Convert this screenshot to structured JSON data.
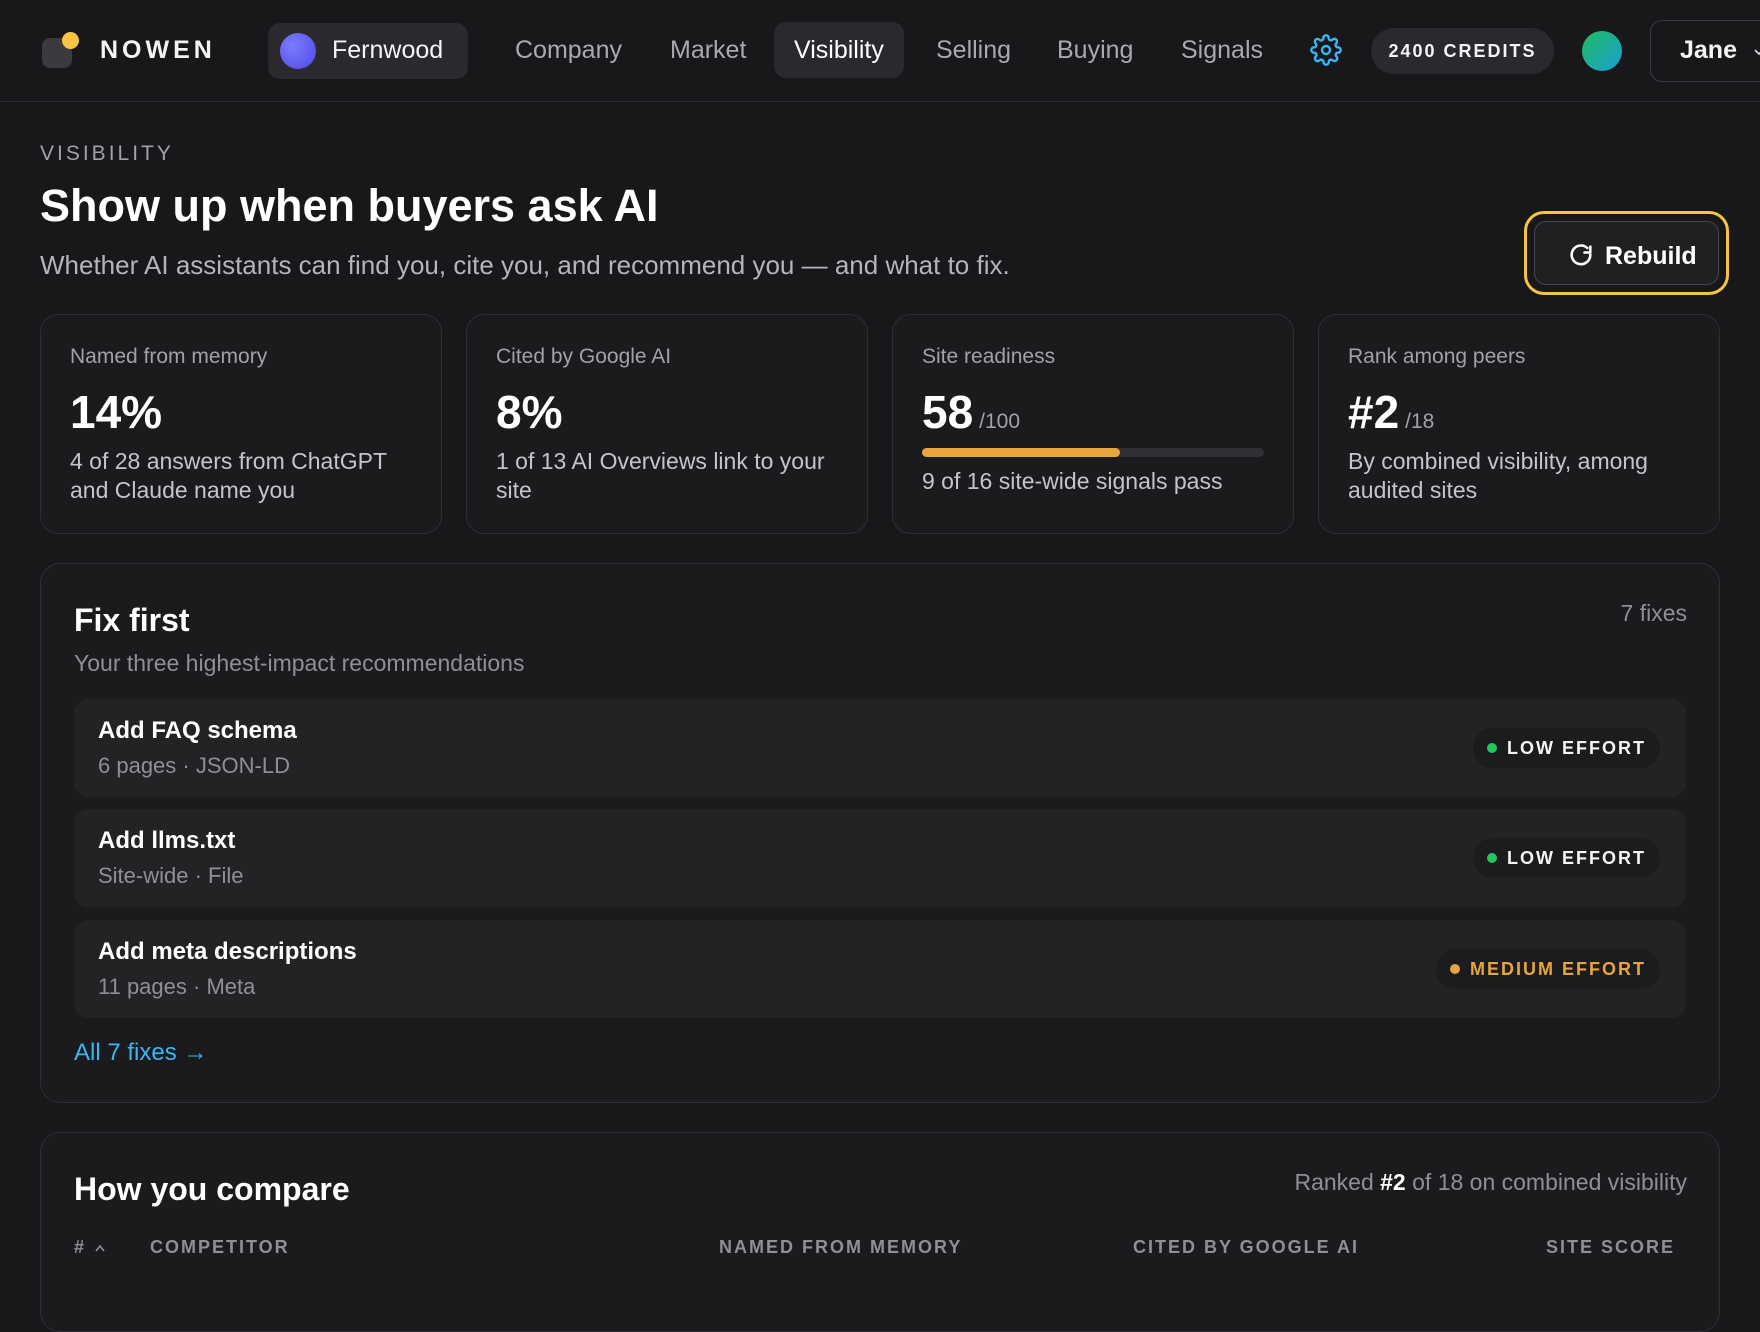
{
  "app": {
    "name": "NOWEN"
  },
  "workspace": {
    "name": "Fernwood"
  },
  "nav": {
    "items": [
      {
        "label": "Company",
        "active": false
      },
      {
        "label": "Market",
        "active": false
      },
      {
        "label": "Visibility",
        "active": true
      },
      {
        "label": "Selling",
        "active": false
      },
      {
        "label": "Buying",
        "active": false
      },
      {
        "label": "Signals",
        "active": false
      }
    ]
  },
  "header_actions": {
    "settings_icon": "gear-icon",
    "credits_label": "2400 CREDITS",
    "user_name": "Jane"
  },
  "page": {
    "eyebrow": "VISIBILITY",
    "title": "Show up when buyers ask AI",
    "subtitle": "Whether AI assistants can find you, cite you, and recommend you — and what to fix.",
    "rebuild_label": "Rebuild"
  },
  "stats": [
    {
      "label": "Named from memory",
      "value": "14%",
      "unit": "",
      "description": "4 of 28 answers from ChatGPT and Claude name you"
    },
    {
      "label": "Cited by Google AI",
      "value": "8%",
      "unit": "",
      "description": "1 of 13 AI Overviews link to your site"
    },
    {
      "label": "Site readiness",
      "value": "58",
      "unit": "/100",
      "progress": 0.58,
      "description": "9 of 16 site-wide signals pass"
    },
    {
      "label": "Rank among peers",
      "value": "#2",
      "unit": "/18",
      "description": "By combined visibility, among audited sites"
    }
  ],
  "fix_first": {
    "title": "Fix first",
    "count_label": "7 fixes",
    "subtitle": "Your three highest-impact recommendations",
    "items": [
      {
        "title": "Add FAQ schema",
        "meta": "6 pages · JSON-LD",
        "effort": "LOW EFFORT",
        "effort_color": "#22c55e"
      },
      {
        "title": "Add llms.txt",
        "meta": "Site-wide · File",
        "effort": "LOW EFFORT",
        "effort_color": "#22c55e"
      },
      {
        "title": "Add meta descriptions",
        "meta": "11 pages · Meta",
        "effort": "MEDIUM EFFORT",
        "effort_color": "#e8a53e"
      }
    ],
    "all_link": "All 7 fixes →"
  },
  "compare": {
    "title": "How you compare",
    "ranked_prefix": "Ranked ",
    "ranked_value": "#2",
    "ranked_suffix": " of 18 on combined visibility",
    "columns": [
      "#",
      "COMPETITOR",
      "NAMED FROM MEMORY",
      "CITED BY GOOGLE AI",
      "SITE SCORE"
    ]
  },
  "colors": {
    "background": "#18181a",
    "accent_yellow": "#f5c542",
    "progress_orange": "#e8a53e",
    "link_blue": "#38b6f5",
    "low_effort_green": "#22c55e"
  }
}
